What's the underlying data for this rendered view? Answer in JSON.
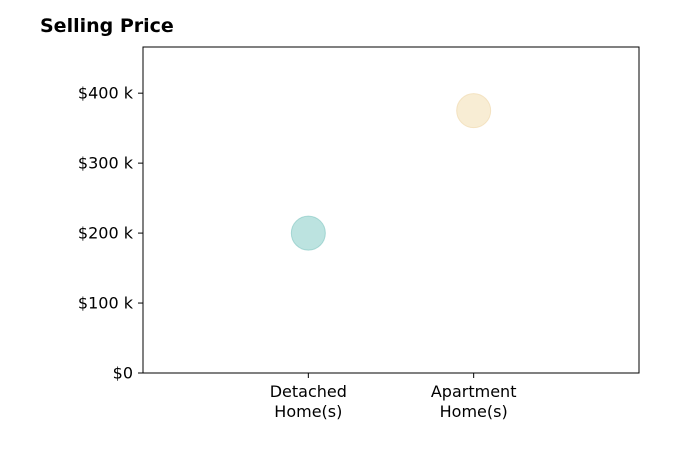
{
  "chart_data": {
    "type": "scatter",
    "title": "Selling Price",
    "xlabel": "",
    "ylabel": "",
    "categories": [
      [
        "Detached",
        "Home(s)"
      ],
      [
        "Apartment",
        "Home(s)"
      ]
    ],
    "xlim": [
      0,
      3
    ],
    "ylim": [
      0,
      466000
    ],
    "yticks": [
      0,
      100000,
      200000,
      300000,
      400000
    ],
    "ytick_labels": [
      "$0",
      "$100 k",
      "$200 k",
      "$300 k",
      "$400 k"
    ],
    "points": [
      {
        "category_index": 1,
        "value": 200000,
        "color": "#8fd1cc",
        "edge_color": "#7fc4bf"
      },
      {
        "category_index": 2,
        "value": 375000,
        "color": "#f4e1b8",
        "edge_color": "#eed6a6"
      }
    ],
    "grid": false,
    "legend": "none"
  }
}
